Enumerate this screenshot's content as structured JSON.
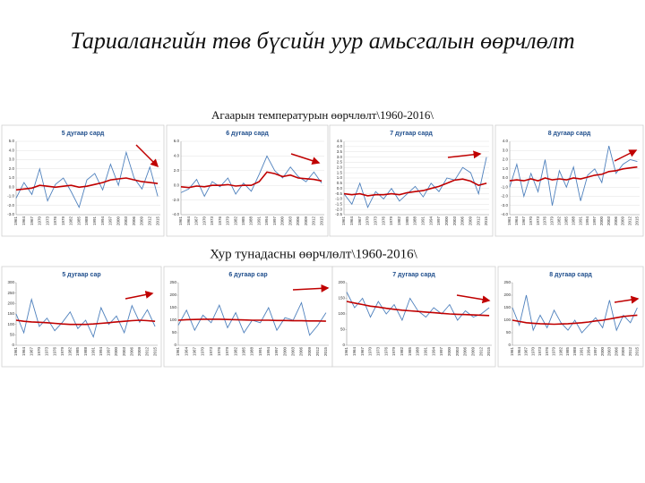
{
  "title": "Тариалангийн төв бүсийн уур амьсгалын өөрчлөлт",
  "subtitles": [
    "Агаарын температурын өөрчлөлт\\1960-2016\\",
    "Хур тунадасны өөрчлөлт\\1960-2016\\"
  ],
  "chart_data": [
    {
      "type": "line",
      "title": "5 дугаар сард",
      "x": [
        1961,
        1964,
        1967,
        1970,
        1973,
        1976,
        1979,
        1982,
        1985,
        1988,
        1991,
        1994,
        1997,
        2000,
        2003,
        2006,
        2009,
        2012,
        2015
      ],
      "xlim": [
        1961,
        2016
      ],
      "ylim": [
        -3,
        5
      ],
      "yticks": [
        {
          "value": -3,
          "label": "-3.0"
        },
        {
          "value": -2,
          "label": "-2.0"
        },
        {
          "value": -1,
          "label": "-1.0"
        },
        {
          "value": 0,
          "label": "0.0"
        },
        {
          "value": 1,
          "label": "1.0"
        },
        {
          "value": 2,
          "label": "2.0"
        },
        {
          "value": 3,
          "label": "3.0"
        },
        {
          "value": 4,
          "label": "4.0"
        },
        {
          "value": 5,
          "label": "5.0"
        }
      ],
      "grid": true,
      "series": [
        {
          "color": "#4f81bd",
          "values": [
            -1.2,
            0.5,
            -0.8,
            2.0,
            -1.5,
            0.3,
            1.0,
            -0.5,
            -2.2,
            0.8,
            1.5,
            -0.3,
            2.5,
            0.2,
            3.8,
            1.0,
            -0.2,
            2.2,
            -1.0
          ]
        },
        {
          "color": "#c00000",
          "values": [
            -0.3,
            -0.2,
            -0.1,
            0.2,
            0.1,
            0,
            0.1,
            0.2,
            0,
            0.1,
            0.3,
            0.5,
            0.8,
            0.9,
            1.0,
            0.8,
            0.6,
            0.5,
            0.4
          ]
        }
      ]
    },
    {
      "type": "line",
      "title": "6 дугаар сард",
      "x": [
        1961,
        1964,
        1967,
        1970,
        1973,
        1976,
        1979,
        1982,
        1985,
        1988,
        1991,
        1994,
        1997,
        2000,
        2003,
        2006,
        2009,
        2012,
        2015
      ],
      "xlim": [
        1961,
        2016
      ],
      "ylim": [
        -4,
        6
      ],
      "yticks": [
        {
          "value": -4,
          "label": "-4.0"
        },
        {
          "value": -2,
          "label": "-2.0"
        },
        {
          "value": 0,
          "label": "0.0"
        },
        {
          "value": 2,
          "label": "2.0"
        },
        {
          "value": 4,
          "label": "4.0"
        },
        {
          "value": 6,
          "label": "6.0"
        }
      ],
      "grid": true,
      "series": [
        {
          "color": "#4f81bd",
          "values": [
            -1.0,
            -0.5,
            0.8,
            -1.5,
            0.5,
            -0.2,
            1.0,
            -1.2,
            0.3,
            -0.8,
            1.5,
            4.0,
            2.0,
            1.0,
            2.5,
            1.2,
            0.5,
            1.8,
            0.3
          ]
        },
        {
          "color": "#c00000",
          "values": [
            -0.2,
            -0.3,
            -0.1,
            -0.2,
            0,
            0,
            0.1,
            -0.1,
            0,
            0,
            0.5,
            1.8,
            1.6,
            1.2,
            1.4,
            1.0,
            0.9,
            0.8,
            0.6
          ]
        }
      ]
    },
    {
      "type": "line",
      "title": "7 дугаар сард",
      "x": [
        1961,
        1964,
        1967,
        1970,
        1973,
        1976,
        1979,
        1982,
        1985,
        1988,
        1991,
        1994,
        1997,
        2000,
        2003,
        2006,
        2009,
        2012,
        2015
      ],
      "xlim": [
        1961,
        2016
      ],
      "ylim": [
        -2.5,
        4.5
      ],
      "yticks": [
        -2.5,
        {
          "value": -2,
          "label": "-2.0"
        },
        -1.5,
        {
          "value": -1,
          "label": "-1.0"
        },
        -0.5,
        {
          "value": 0,
          "label": "0.0"
        },
        0.5,
        {
          "value": 1,
          "label": "1.0"
        },
        1.5,
        {
          "value": 2,
          "label": "2.0"
        },
        2.5,
        {
          "value": 3,
          "label": "3.0"
        },
        3.5,
        {
          "value": 4,
          "label": "4.0"
        },
        4.5
      ],
      "grid": true,
      "series": [
        {
          "color": "#4f81bd",
          "values": [
            -0.5,
            -1.5,
            0.5,
            -1.8,
            -0.3,
            -1.0,
            0,
            -1.2,
            -0.5,
            0.2,
            -0.8,
            0.5,
            -0.3,
            1.0,
            0.8,
            2.0,
            1.5,
            -0.5,
            3.0
          ]
        },
        {
          "color": "#c00000",
          "values": [
            -0.5,
            -0.6,
            -0.5,
            -0.7,
            -0.6,
            -0.6,
            -0.5,
            -0.6,
            -0.4,
            -0.3,
            -0.2,
            0,
            0.2,
            0.5,
            0.8,
            0.9,
            0.7,
            0.3,
            0.5
          ]
        }
      ]
    },
    {
      "type": "line",
      "title": "8 дугаар сард",
      "x": [
        1961,
        1964,
        1967,
        1970,
        1973,
        1976,
        1979,
        1982,
        1985,
        1988,
        1991,
        1994,
        1997,
        2000,
        2003,
        2006,
        2009,
        2012,
        2015
      ],
      "xlim": [
        1961,
        2016
      ],
      "ylim": [
        -4,
        4
      ],
      "yticks": [
        {
          "value": -4,
          "label": "-4.0"
        },
        {
          "value": -3,
          "label": "-3.0"
        },
        {
          "value": -2,
          "label": "-2.0"
        },
        {
          "value": -1,
          "label": "-1.0"
        },
        {
          "value": 0,
          "label": "0.0"
        },
        {
          "value": 1,
          "label": "1.0"
        },
        {
          "value": 2,
          "label": "2.0"
        },
        {
          "value": 3,
          "label": "3.0"
        },
        {
          "value": 4,
          "label": "4.0"
        }
      ],
      "grid": true,
      "series": [
        {
          "color": "#4f81bd",
          "values": [
            -1.0,
            1.5,
            -2.0,
            0.5,
            -1.5,
            2.0,
            -3.0,
            0.8,
            -1.0,
            1.2,
            -2.5,
            0.3,
            1.0,
            -0.5,
            3.5,
            0.5,
            1.5,
            2.0,
            1.8
          ]
        },
        {
          "color": "#c00000",
          "values": [
            -0.3,
            -0.2,
            -0.3,
            -0.1,
            -0.3,
            0,
            -0.2,
            -0.1,
            -0.2,
            0,
            -0.1,
            0.1,
            0.3,
            0.4,
            0.7,
            0.8,
            1.0,
            1.1,
            1.2
          ]
        }
      ]
    },
    {
      "type": "line",
      "title": "5 дугаар сар",
      "x": [
        1961,
        1964,
        1967,
        1970,
        1973,
        1976,
        1979,
        1982,
        1985,
        1988,
        1991,
        1994,
        1997,
        2000,
        2003,
        2006,
        2009,
        2012,
        2015
      ],
      "xlim": [
        1961,
        2016
      ],
      "ylim": [
        0,
        300
      ],
      "yticks": [
        0,
        50,
        100,
        150,
        200,
        250,
        300
      ],
      "grid": false,
      "series": [
        {
          "color": "#4f81bd",
          "values": [
            150,
            60,
            220,
            90,
            130,
            70,
            110,
            160,
            80,
            120,
            40,
            180,
            100,
            140,
            60,
            190,
            110,
            170,
            90
          ]
        },
        {
          "color": "#c00000",
          "values": [
            120,
            115,
            112,
            110,
            108,
            105,
            102,
            100,
            100,
            100,
            102,
            105,
            108,
            112,
            115,
            118,
            120,
            118,
            115
          ]
        }
      ]
    },
    {
      "type": "line",
      "title": "6 дугаар сар",
      "x": [
        1961,
        1964,
        1967,
        1970,
        1973,
        1976,
        1979,
        1982,
        1985,
        1988,
        1991,
        1994,
        1997,
        2000,
        2003,
        2006,
        2009,
        2012,
        2015
      ],
      "xlim": [
        1961,
        2016
      ],
      "ylim": [
        0,
        250
      ],
      "yticks": [
        0,
        50,
        100,
        150,
        200,
        250
      ],
      "grid": false,
      "series": [
        {
          "color": "#4f81bd",
          "values": [
            80,
            140,
            60,
            120,
            90,
            160,
            70,
            130,
            50,
            100,
            90,
            150,
            60,
            110,
            100,
            170,
            40,
            80,
            130
          ]
        },
        {
          "color": "#c00000",
          "values": [
            100,
            102,
            103,
            104,
            104,
            104,
            103,
            102,
            101,
            100,
            100,
            100,
            99,
            99,
            98,
            98,
            97,
            97,
            96
          ]
        }
      ]
    },
    {
      "type": "line",
      "title": "7 дугаар сард",
      "x": [
        1961,
        1964,
        1967,
        1970,
        1973,
        1976,
        1979,
        1982,
        1985,
        1988,
        1991,
        1994,
        1997,
        2000,
        2003,
        2006,
        2009,
        2012,
        2015
      ],
      "xlim": [
        1961,
        2016
      ],
      "ylim": [
        0,
        200
      ],
      "yticks": [
        0,
        50,
        100,
        150,
        200
      ],
      "grid": false,
      "series": [
        {
          "color": "#4f81bd",
          "values": [
            170,
            120,
            150,
            90,
            140,
            100,
            130,
            80,
            150,
            110,
            90,
            120,
            100,
            130,
            80,
            110,
            90,
            100,
            120
          ]
        },
        {
          "color": "#c00000",
          "values": [
            140,
            135,
            130,
            125,
            122,
            118,
            115,
            112,
            110,
            108,
            106,
            104,
            102,
            100,
            99,
            98,
            97,
            96,
            95
          ]
        }
      ]
    },
    {
      "type": "line",
      "title": "8 дугаар сард",
      "x": [
        1961,
        1964,
        1967,
        1970,
        1973,
        1976,
        1979,
        1982,
        1985,
        1988,
        1991,
        1994,
        1997,
        2000,
        2003,
        2006,
        2009,
        2012,
        2015
      ],
      "xlim": [
        1961,
        2016
      ],
      "ylim": [
        0,
        250
      ],
      "yticks": [
        0,
        50,
        100,
        150,
        200,
        250
      ],
      "grid": false,
      "series": [
        {
          "color": "#4f81bd",
          "values": [
            150,
            80,
            200,
            60,
            120,
            70,
            140,
            90,
            60,
            100,
            50,
            80,
            110,
            70,
            180,
            60,
            120,
            90,
            150
          ]
        },
        {
          "color": "#c00000",
          "values": [
            100,
            95,
            90,
            88,
            86,
            85,
            84,
            85,
            86,
            88,
            90,
            93,
            97,
            100,
            105,
            110,
            115,
            118,
            120
          ]
        }
      ]
    }
  ]
}
